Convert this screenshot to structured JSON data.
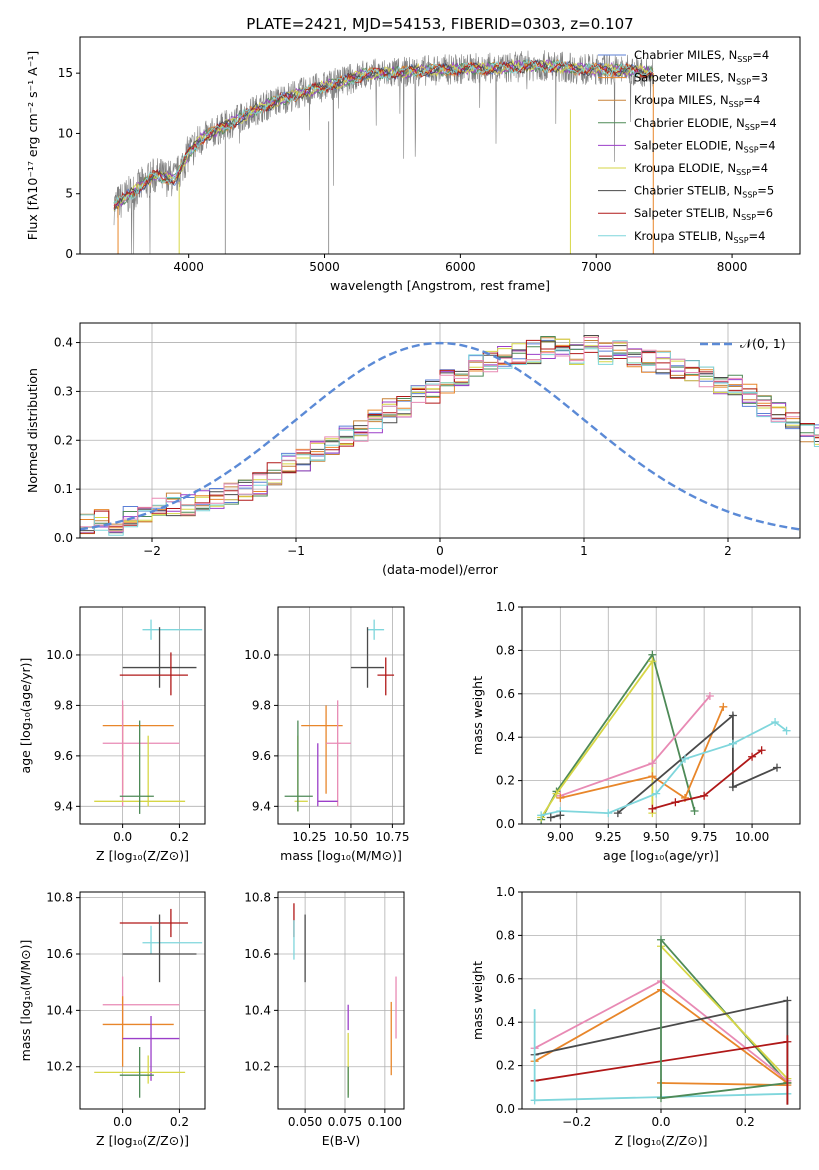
{
  "title": "PLATE=2421, MJD=54153, FIBERID=0303, z=0.107",
  "colors": {
    "Chabrier MILES": "#5b7fd6",
    "Salpeter MILES": "#e8862a",
    "Kroupa MILES": "#c8843a",
    "Chabrier ELODIE": "#4e8a57",
    "Salpeter ELODIE": "#9b3fc9",
    "Kroupa ELODIE": "#d6d646",
    "Chabrier STELIB": "#4a4a4a",
    "Salpeter STELIB": "#b01818",
    "Kroupa STELIB": "#7fd6dc",
    "pink": "#e88ab4",
    "gaussian": "#5b8ad6"
  },
  "chart_data": [
    {
      "type": "line",
      "xlabel": "wavelength [Angstrom, rest frame]",
      "ylabel": "Flux [fλ10⁻¹⁷ erg cm⁻² s⁻¹ A⁻¹]",
      "xlim": [
        3200,
        8500
      ],
      "ylim": [
        0,
        18
      ],
      "xticks": [
        "4000",
        "5000",
        "6000",
        "7000",
        "8000"
      ],
      "yticks": [
        "0",
        "5",
        "10",
        "15"
      ],
      "grid": false,
      "legend_position": "right",
      "legend": [
        {
          "label": "Chabrier MILES, N",
          "sub": "SSP",
          "val": "=4"
        },
        {
          "label": "Salpeter MILES, N",
          "sub": "SSP",
          "val": "=3"
        },
        {
          "label": "Kroupa MILES, N",
          "sub": "SSP",
          "val": "=4"
        },
        {
          "label": "Chabrier ELODIE, N",
          "sub": "SSP",
          "val": "=4"
        },
        {
          "label": "Salpeter ELODIE, N",
          "sub": "SSP",
          "val": "=4"
        },
        {
          "label": "Kroupa ELODIE, N",
          "sub": "SSP",
          "val": "=4"
        },
        {
          "label": "Chabrier STELIB, N",
          "sub": "SSP",
          "val": "=5"
        },
        {
          "label": "Salpeter STELIB, N",
          "sub": "SSP",
          "val": "=6"
        },
        {
          "label": "Kroupa STELIB, N",
          "sub": "SSP",
          "val": "=4"
        }
      ],
      "continuum": [
        [
          3450,
          4.0
        ],
        [
          3600,
          5.2
        ],
        [
          3750,
          6.5
        ],
        [
          3900,
          6.2
        ],
        [
          4000,
          8.4
        ],
        [
          4100,
          9.6
        ],
        [
          4300,
          10.8
        ],
        [
          4500,
          12.0
        ],
        [
          4700,
          12.9
        ],
        [
          4900,
          13.6
        ],
        [
          5100,
          14.2
        ],
        [
          5300,
          14.9
        ],
        [
          5500,
          15.0
        ],
        [
          5700,
          15.2
        ],
        [
          5900,
          15.3
        ],
        [
          6100,
          15.4
        ],
        [
          6300,
          15.4
        ],
        [
          6500,
          15.6
        ],
        [
          6700,
          15.6
        ],
        [
          6900,
          15.3
        ],
        [
          7100,
          15.3
        ],
        [
          7300,
          15.2
        ],
        [
          7420,
          15.0
        ]
      ]
    },
    {
      "type": "bar",
      "xlabel": "(data-model)/error",
      "ylabel": "Normed distribution",
      "xlim": [
        -2.5,
        2.5
      ],
      "ylim": [
        0,
        0.44
      ],
      "xticks": [
        "−2",
        "−1",
        "0",
        "1",
        "2"
      ],
      "yticks": [
        "0.0",
        "0.1",
        "0.2",
        "0.3",
        "0.4"
      ],
      "grid": true,
      "legend": "𝒩(0, 1)",
      "legend_position": "top-right",
      "bin_width": 0.1,
      "bins_start": -2.5,
      "histogram": [
        0.03,
        0.04,
        0.03,
        0.04,
        0.05,
        0.06,
        0.07,
        0.07,
        0.08,
        0.08,
        0.09,
        0.1,
        0.11,
        0.13,
        0.15,
        0.16,
        0.18,
        0.19,
        0.21,
        0.22,
        0.24,
        0.26,
        0.27,
        0.29,
        0.3,
        0.32,
        0.33,
        0.35,
        0.36,
        0.37,
        0.38,
        0.38,
        0.39,
        0.39,
        0.38,
        0.39,
        0.38,
        0.38,
        0.37,
        0.36,
        0.36,
        0.35,
        0.34,
        0.33,
        0.32,
        0.31,
        0.29,
        0.27,
        0.26,
        0.24,
        0.22,
        0.21,
        0.19,
        0.18,
        0.16,
        0.15,
        0.13,
        0.12,
        0.11,
        0.1,
        0.09,
        0.08,
        0.07,
        0.06,
        0.06,
        0.05,
        0.05,
        0.04,
        0.04,
        0.03
      ]
    },
    {
      "type": "scatter",
      "xlabel": "Z [log₁₀(Z/Z⊙)]",
      "ylabel": "age  [log₁₀(age/yr)]",
      "xlim": [
        -0.15,
        0.29
      ],
      "ylim": [
        9.33,
        10.19
      ],
      "xticks": [
        "0.0",
        "0.2"
      ],
      "yticks": [
        "9.4",
        "9.6",
        "9.8",
        "10.0"
      ],
      "grid": true,
      "points": [
        {
          "c": "Kroupa STELIB",
          "x": 0.1,
          "y": 10.1,
          "xe": [
            0.07,
            0.28
          ],
          "ye": [
            10.06,
            10.14
          ]
        },
        {
          "c": "Chabrier STELIB",
          "x": 0.13,
          "y": 9.95,
          "xe": [
            0.0,
            0.26
          ],
          "ye": [
            9.87,
            10.11
          ]
        },
        {
          "c": "Salpeter STELIB",
          "x": 0.17,
          "y": 9.92,
          "xe": [
            -0.01,
            0.23
          ],
          "ye": [
            9.84,
            10.01
          ]
        },
        {
          "c": "Salpeter MILES",
          "x": 0.0,
          "y": 9.72,
          "xe": [
            -0.07,
            0.18
          ],
          "ye": [
            9.45,
            9.8
          ]
        },
        {
          "c": "pink",
          "x": 0.0,
          "y": 9.65,
          "xe": [
            -0.07,
            0.2
          ],
          "ye": [
            9.4,
            9.82
          ]
        },
        {
          "c": "Kroupa ELODIE",
          "x": 0.09,
          "y": 9.42,
          "xe": [
            -0.1,
            0.22
          ],
          "ye": [
            9.4,
            9.68
          ]
        },
        {
          "c": "Chabrier ELODIE",
          "x": 0.06,
          "y": 9.44,
          "xe": [
            -0.01,
            0.11
          ],
          "ye": [
            9.37,
            9.74
          ]
        }
      ]
    },
    {
      "type": "scatter",
      "xlabel": "mass [log₁₀(M/M⊙)]",
      "ylabel": "",
      "xlim": [
        10.06,
        10.82
      ],
      "ylim": [
        9.33,
        10.19
      ],
      "xticks": [
        "10.25",
        "10.50",
        "10.75"
      ],
      "yticks": [
        "9.4",
        "9.6",
        "9.8",
        "10.0"
      ],
      "grid": true,
      "points": [
        {
          "c": "Kroupa STELIB",
          "x": 10.64,
          "y": 10.1,
          "xe": [
            10.6,
            10.7
          ],
          "ye": [
            10.06,
            10.14
          ]
        },
        {
          "c": "Chabrier STELIB",
          "x": 10.6,
          "y": 9.95,
          "xe": [
            10.5,
            10.7
          ],
          "ye": [
            9.87,
            10.11
          ]
        },
        {
          "c": "Salpeter STELIB",
          "x": 10.71,
          "y": 9.92,
          "xe": [
            10.66,
            10.76
          ],
          "ye": [
            9.84,
            9.99
          ]
        },
        {
          "c": "Salpeter MILES",
          "x": 10.35,
          "y": 9.72,
          "xe": [
            10.2,
            10.45
          ],
          "ye": [
            9.45,
            9.8
          ]
        },
        {
          "c": "pink",
          "x": 10.42,
          "y": 9.65,
          "xe": [
            10.35,
            10.5
          ],
          "ye": [
            9.4,
            9.82
          ]
        },
        {
          "c": "Salpeter ELODIE",
          "x": 10.3,
          "y": 9.42,
          "xe": [
            10.3,
            10.42
          ],
          "ye": [
            9.4,
            9.65
          ]
        },
        {
          "c": "Kroupa ELODIE",
          "x": 10.18,
          "y": 9.42,
          "xe": [
            10.16,
            10.24
          ],
          "ye": [
            9.38,
            9.68
          ]
        },
        {
          "c": "Chabrier ELODIE",
          "x": 10.18,
          "y": 9.44,
          "xe": [
            10.1,
            10.27
          ],
          "ye": [
            9.38,
            9.74
          ]
        }
      ]
    },
    {
      "type": "line",
      "xlabel": "age  [log₁₀(age/yr)]",
      "ylabel": "mass weight",
      "xlim": [
        8.8,
        10.25
      ],
      "ylim": [
        0,
        1.0
      ],
      "xticks": [
        "9.00",
        "9.25",
        "9.50",
        "9.75",
        "10.00"
      ],
      "yticks": [
        "0.0",
        "0.2",
        "0.4",
        "0.6",
        "0.8",
        "1.0"
      ],
      "grid": true,
      "series": [
        {
          "c": "Chabrier ELODIE",
          "x": [
            8.9,
            8.98,
            9.48,
            9.7
          ],
          "y": [
            0.02,
            0.15,
            0.78,
            0.06
          ]
        },
        {
          "c": "Kroupa ELODIE",
          "x": [
            8.9,
            8.98,
            9.48,
            9.48
          ],
          "y": [
            0.03,
            0.14,
            0.75,
            0.05
          ]
        },
        {
          "c": "pink",
          "x": [
            9.0,
            9.48,
            9.78
          ],
          "y": [
            0.13,
            0.28,
            0.59
          ]
        },
        {
          "c": "Salpeter MILES",
          "x": [
            9.0,
            9.48,
            9.65,
            9.85
          ],
          "y": [
            0.12,
            0.22,
            0.12,
            0.54
          ]
        },
        {
          "c": "Chabrier STELIB",
          "x": [
            9.3,
            9.9,
            9.9,
            10.13
          ],
          "y": [
            0.05,
            0.5,
            0.17,
            0.26
          ]
        },
        {
          "c": "Salpeter STELIB",
          "x": [
            9.48,
            9.6,
            9.75,
            10.0,
            10.05
          ],
          "y": [
            0.07,
            0.1,
            0.13,
            0.31,
            0.34
          ]
        },
        {
          "c": "Kroupa STELIB",
          "x": [
            8.9,
            9.0,
            9.25,
            9.5,
            9.65,
            9.9,
            10.12,
            10.18
          ],
          "y": [
            0.04,
            0.06,
            0.05,
            0.14,
            0.3,
            0.37,
            0.47,
            0.43
          ]
        },
        {
          "c": "Chabrier STELIB",
          "x": [
            8.95,
            9.0
          ],
          "y": [
            0.03,
            0.04
          ]
        }
      ]
    },
    {
      "type": "scatter",
      "xlabel": "Z [log₁₀(Z/Z⊙)]",
      "ylabel": "mass [log₁₀(M/M⊙)]",
      "xlim": [
        -0.15,
        0.29
      ],
      "ylim": [
        10.05,
        10.82
      ],
      "xticks": [
        "0.0",
        "0.2"
      ],
      "yticks": [
        "10.2",
        "10.4",
        "10.6",
        "10.8"
      ],
      "grid": true,
      "points": [
        {
          "c": "Salpeter STELIB",
          "x": 0.17,
          "y": 10.71,
          "xe": [
            -0.01,
            0.23
          ],
          "ye": [
            10.66,
            10.76
          ]
        },
        {
          "c": "Kroupa STELIB",
          "x": 0.1,
          "y": 10.64,
          "xe": [
            0.07,
            0.28
          ],
          "ye": [
            10.6,
            10.7
          ]
        },
        {
          "c": "Chabrier STELIB",
          "x": 0.13,
          "y": 10.6,
          "xe": [
            0.0,
            0.26
          ],
          "ye": [
            10.5,
            10.74
          ]
        },
        {
          "c": "pink",
          "x": 0.0,
          "y": 10.42,
          "xe": [
            -0.07,
            0.2
          ],
          "ye": [
            10.35,
            10.52
          ]
        },
        {
          "c": "Salpeter MILES",
          "x": 0.0,
          "y": 10.35,
          "xe": [
            -0.07,
            0.18
          ],
          "ye": [
            10.2,
            10.45
          ]
        },
        {
          "c": "Salpeter ELODIE",
          "x": 0.1,
          "y": 10.3,
          "xe": [
            0.0,
            0.2
          ],
          "ye": [
            10.15,
            10.38
          ]
        },
        {
          "c": "Kroupa ELODIE",
          "x": 0.09,
          "y": 10.18,
          "xe": [
            -0.1,
            0.22
          ],
          "ye": [
            10.14,
            10.24
          ]
        },
        {
          "c": "Chabrier ELODIE",
          "x": 0.06,
          "y": 10.17,
          "xe": [
            -0.01,
            0.11
          ],
          "ye": [
            10.09,
            10.27
          ]
        }
      ]
    },
    {
      "type": "scatter",
      "xlabel": "E(B-V)",
      "ylabel": "",
      "xlim": [
        0.033,
        0.112
      ],
      "ylim": [
        10.05,
        10.82
      ],
      "xticks": [
        "0.050",
        "0.075",
        "0.100"
      ],
      "yticks": [
        "10.2",
        "10.4",
        "10.6",
        "10.8"
      ],
      "grid": true,
      "points": [
        {
          "c": "Salpeter STELIB",
          "x": 0.043,
          "y": 10.72,
          "ye": [
            10.66,
            10.78
          ]
        },
        {
          "c": "Kroupa STELIB",
          "x": 0.043,
          "y": 10.65,
          "ye": [
            10.58,
            10.72
          ]
        },
        {
          "c": "Chabrier STELIB",
          "x": 0.05,
          "y": 10.62,
          "ye": [
            10.5,
            10.74
          ]
        },
        {
          "c": "Salpeter ELODIE",
          "x": 0.077,
          "y": 10.38,
          "ye": [
            10.33,
            10.42
          ]
        },
        {
          "c": "Kroupa ELODIE",
          "x": 0.077,
          "y": 10.2,
          "ye": [
            10.1,
            10.32
          ]
        },
        {
          "c": "Chabrier ELODIE",
          "x": 0.077,
          "y": 10.12,
          "ye": [
            10.09,
            10.2
          ]
        },
        {
          "c": "Salpeter MILES",
          "x": 0.104,
          "y": 10.3,
          "ye": [
            10.17,
            10.43
          ]
        },
        {
          "c": "pink",
          "x": 0.107,
          "y": 10.42,
          "ye": [
            10.3,
            10.52
          ]
        }
      ]
    },
    {
      "type": "line",
      "xlabel": "Z [log₁₀(Z/Z⊙)]",
      "ylabel": "mass weight",
      "xlim": [
        -0.33,
        0.33
      ],
      "ylim": [
        0,
        1.0
      ],
      "xticks": [
        "−0.2",
        "0.0",
        "0.2"
      ],
      "yticks": [
        "0.0",
        "0.2",
        "0.4",
        "0.6",
        "0.8",
        "1.0"
      ],
      "grid": true,
      "series": [
        {
          "c": "Chabrier ELODIE",
          "x": [
            0.0,
            0.3
          ],
          "y": [
            0.78,
            0.12
          ]
        },
        {
          "c": "Kroupa ELODIE",
          "x": [
            0.0,
            0.3
          ],
          "y": [
            0.75,
            0.14
          ]
        },
        {
          "c": "pink",
          "x": [
            -0.3,
            0.0,
            0.3
          ],
          "y": [
            0.28,
            0.59,
            0.13
          ]
        },
        {
          "c": "Salpeter MILES",
          "x": [
            -0.3,
            0.0,
            0.3
          ],
          "y": [
            0.22,
            0.55,
            0.12
          ]
        },
        {
          "c": "Salpeter MILES",
          "x": [
            0.0,
            0.3
          ],
          "y": [
            0.12,
            0.11
          ]
        },
        {
          "c": "Chabrier STELIB",
          "x": [
            -0.3,
            0.3
          ],
          "y": [
            0.25,
            0.5
          ]
        },
        {
          "c": "Salpeter STELIB",
          "x": [
            -0.3,
            0.3
          ],
          "y": [
            0.13,
            0.31
          ]
        },
        {
          "c": "Kroupa STELIB",
          "x": [
            -0.3,
            0.3
          ],
          "y": [
            0.04,
            0.07
          ]
        },
        {
          "c": "Chabrier ELODIE",
          "x": [
            0.0,
            0.3
          ],
          "y": [
            0.05,
            0.12
          ]
        }
      ],
      "verticals": [
        {
          "c": "Kroupa STELIB",
          "x": -0.3,
          "y": [
            0.04,
            0.46
          ]
        },
        {
          "c": "Kroupa STELIB",
          "x": 0.3,
          "y": [
            0.04,
            0.34
          ]
        },
        {
          "c": "Chabrier STELIB",
          "x": 0.3,
          "y": [
            0.02,
            0.5
          ]
        },
        {
          "c": "Salpeter STELIB",
          "x": 0.3,
          "y": [
            0.02,
            0.34
          ]
        },
        {
          "c": "Chabrier ELODIE",
          "x": 0.0,
          "y": [
            0.05,
            0.78
          ]
        }
      ]
    }
  ]
}
